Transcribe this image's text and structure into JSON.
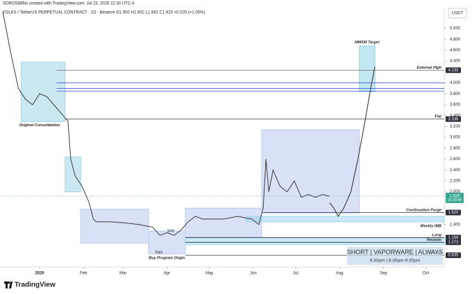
{
  "header": {
    "credit": "SOROS886ix created with TradingView.com, Jul 23, 2026 22:30 UTC-4",
    "symbol_line": "FOLKS / TetherUS PERPETUAL CONTRACT · 1D · Binance  O1.900 H1.932 L1.892 C1.920 +0.020 (+1.05%)"
  },
  "chart_data": {
    "type": "line",
    "currency": "USDT",
    "xlim": [
      -28,
      286
    ],
    "ylim": [
      0.62,
      5.37
    ],
    "xticks": [
      {
        "value": 0,
        "label": "2026"
      },
      {
        "value": 31,
        "label": "Feb"
      },
      {
        "value": 59,
        "label": "Mar"
      },
      {
        "value": 90,
        "label": "Apr"
      },
      {
        "value": 120,
        "label": "May"
      },
      {
        "value": 151,
        "label": "Jun"
      },
      {
        "value": 181,
        "label": "Jul"
      },
      {
        "value": 212,
        "label": "Aug"
      },
      {
        "value": 243,
        "label": "Sep"
      },
      {
        "value": 273,
        "label": "Oct"
      }
    ],
    "yticks": [
      {
        "value": 5,
        "label": "5.000"
      },
      {
        "value": 4.8,
        "label": "4.800"
      },
      {
        "value": 4.6,
        "label": "4.600"
      },
      {
        "value": 4.4,
        "label": "4.400"
      },
      {
        "value": 4,
        "label": "4.000"
      },
      {
        "value": 3.8,
        "label": "3.800"
      },
      {
        "value": 3.6,
        "label": "3.600"
      },
      {
        "value": 3.4,
        "label": "3.400"
      },
      {
        "value": 3.2,
        "label": "3.200"
      },
      {
        "value": 3,
        "label": "3.000"
      },
      {
        "value": 2.8,
        "label": "2.800"
      },
      {
        "value": 2.6,
        "label": "2.600"
      },
      {
        "value": 2.4,
        "label": "2.400"
      },
      {
        "value": 2.2,
        "label": "2.200"
      },
      {
        "value": 2,
        "label": "2.000"
      },
      {
        "value": 1.4,
        "label": "1.400"
      }
    ],
    "series": [
      {
        "color": "#3a3a3a",
        "x": [
          -26,
          -20,
          -15,
          -10,
          -5,
          0,
          5,
          10,
          15,
          20,
          22,
          25,
          30,
          35,
          38,
          40,
          50,
          60,
          70,
          80,
          85,
          90,
          95,
          100,
          105,
          110,
          115,
          120,
          130,
          140,
          150,
          155,
          158,
          160,
          162,
          165,
          170,
          175,
          180,
          185,
          190,
          195,
          200,
          205
        ],
        "values": [
          5.3,
          4.5,
          3.9,
          3.7,
          3.6,
          3.8,
          3.75,
          3.6,
          3.45,
          3.3,
          2.6,
          2.3,
          2.1,
          1.8,
          1.5,
          1.45,
          1.45,
          1.43,
          1.4,
          1.35,
          1.2,
          1.25,
          1.2,
          1.3,
          1.45,
          1.55,
          1.5,
          1.5,
          1.5,
          1.55,
          1.5,
          1.4,
          1.7,
          2.6,
          2.0,
          2.4,
          2.1,
          2.0,
          2.2,
          1.9,
          1.95,
          1.9,
          1.95,
          1.92
        ]
      },
      {
        "color": "#444444",
        "x": [
          205,
          208,
          211,
          215,
          220,
          225,
          230,
          234,
          237
        ],
        "values": [
          1.8,
          1.7,
          1.55,
          1.7,
          2.0,
          2.6,
          3.3,
          3.9,
          4.3
        ]
      }
    ],
    "zones": [
      {
        "x": [
          -13,
          18
        ],
        "y": [
          3.29,
          4.38
        ],
        "color": "#9fd6e6",
        "label": "Original Consolidation"
      },
      {
        "x": [
          18,
          29
        ],
        "y": [
          2.0,
          2.64
        ],
        "color": "#9fd6e6"
      },
      {
        "x": [
          29,
          77
        ],
        "y": [
          1.06,
          1.68
        ],
        "color": "#b9c9f0"
      },
      {
        "x": [
          77,
          103
        ],
        "y": [
          0.86,
          1.28
        ],
        "color": "#b9c9f0",
        "label": "Buy Program Origin"
      },
      {
        "x": [
          103,
          157
        ],
        "y": [
          1.17,
          1.7
        ],
        "color": "#b9c9f0"
      },
      {
        "x": [
          157,
          226
        ],
        "y": [
          1.61,
          3.14
        ],
        "color": "#b9c9f0"
      },
      {
        "x": [
          226,
          237
        ],
        "y": [
          3.84,
          4.68
        ],
        "color": "#8fd3e6",
        "label": "MMXM Target"
      },
      {
        "x": [
          146,
          286
        ],
        "y": [
          1.45,
          1.55
        ],
        "color": "#9fd6ee",
        "label": "Weekly IMB"
      },
      {
        "x": [
          103,
          286
        ],
        "y": [
          1.03,
          1.16
        ],
        "color": "#9fd6ee"
      }
    ],
    "levels": [
      {
        "value": 4.233,
        "value_label": "4.233",
        "label": "External High",
        "start": 12,
        "color": "#666666"
      },
      {
        "value": 4.0,
        "start": 12,
        "color": "#3b5bdb"
      },
      {
        "value": 3.9,
        "start": 12,
        "color": "#3b5bdb"
      },
      {
        "value": 3.85,
        "start": 12,
        "color": "#3b5bdb"
      },
      {
        "value": 3.336,
        "value_label": "3.336",
        "label": "Flat",
        "start": 18,
        "color": "#333333"
      },
      {
        "value": 1.62,
        "value_label": "1.620",
        "label": "Continuation Purge",
        "start": 158,
        "color": "#333333"
      },
      {
        "value": 1.159,
        "value_label": "1.159",
        "label": "Long",
        "start": 103,
        "color": "#333333"
      },
      {
        "value": 1.073,
        "value_label": "1.073",
        "label": "Reclaim",
        "start": 103,
        "color": "#333333"
      },
      {
        "value": 0.835,
        "value_label": "0.835",
        "label": "Purge",
        "start": 103,
        "color": "#333333"
      }
    ],
    "last_price": {
      "value": 1.92,
      "value_label": "1.920",
      "countdown": "21:29:48",
      "color": "#3aa890"
    },
    "annotations": [
      {
        "text": "Shift"
      },
      {
        "text": "Raid"
      }
    ],
    "overlay": {
      "title": "SHORT | VAPORWARE | ALWAYS",
      "subtitle": "6:30pm | 8:30pm-9:30pm"
    }
  },
  "footer": {
    "logo": "TradingView"
  }
}
